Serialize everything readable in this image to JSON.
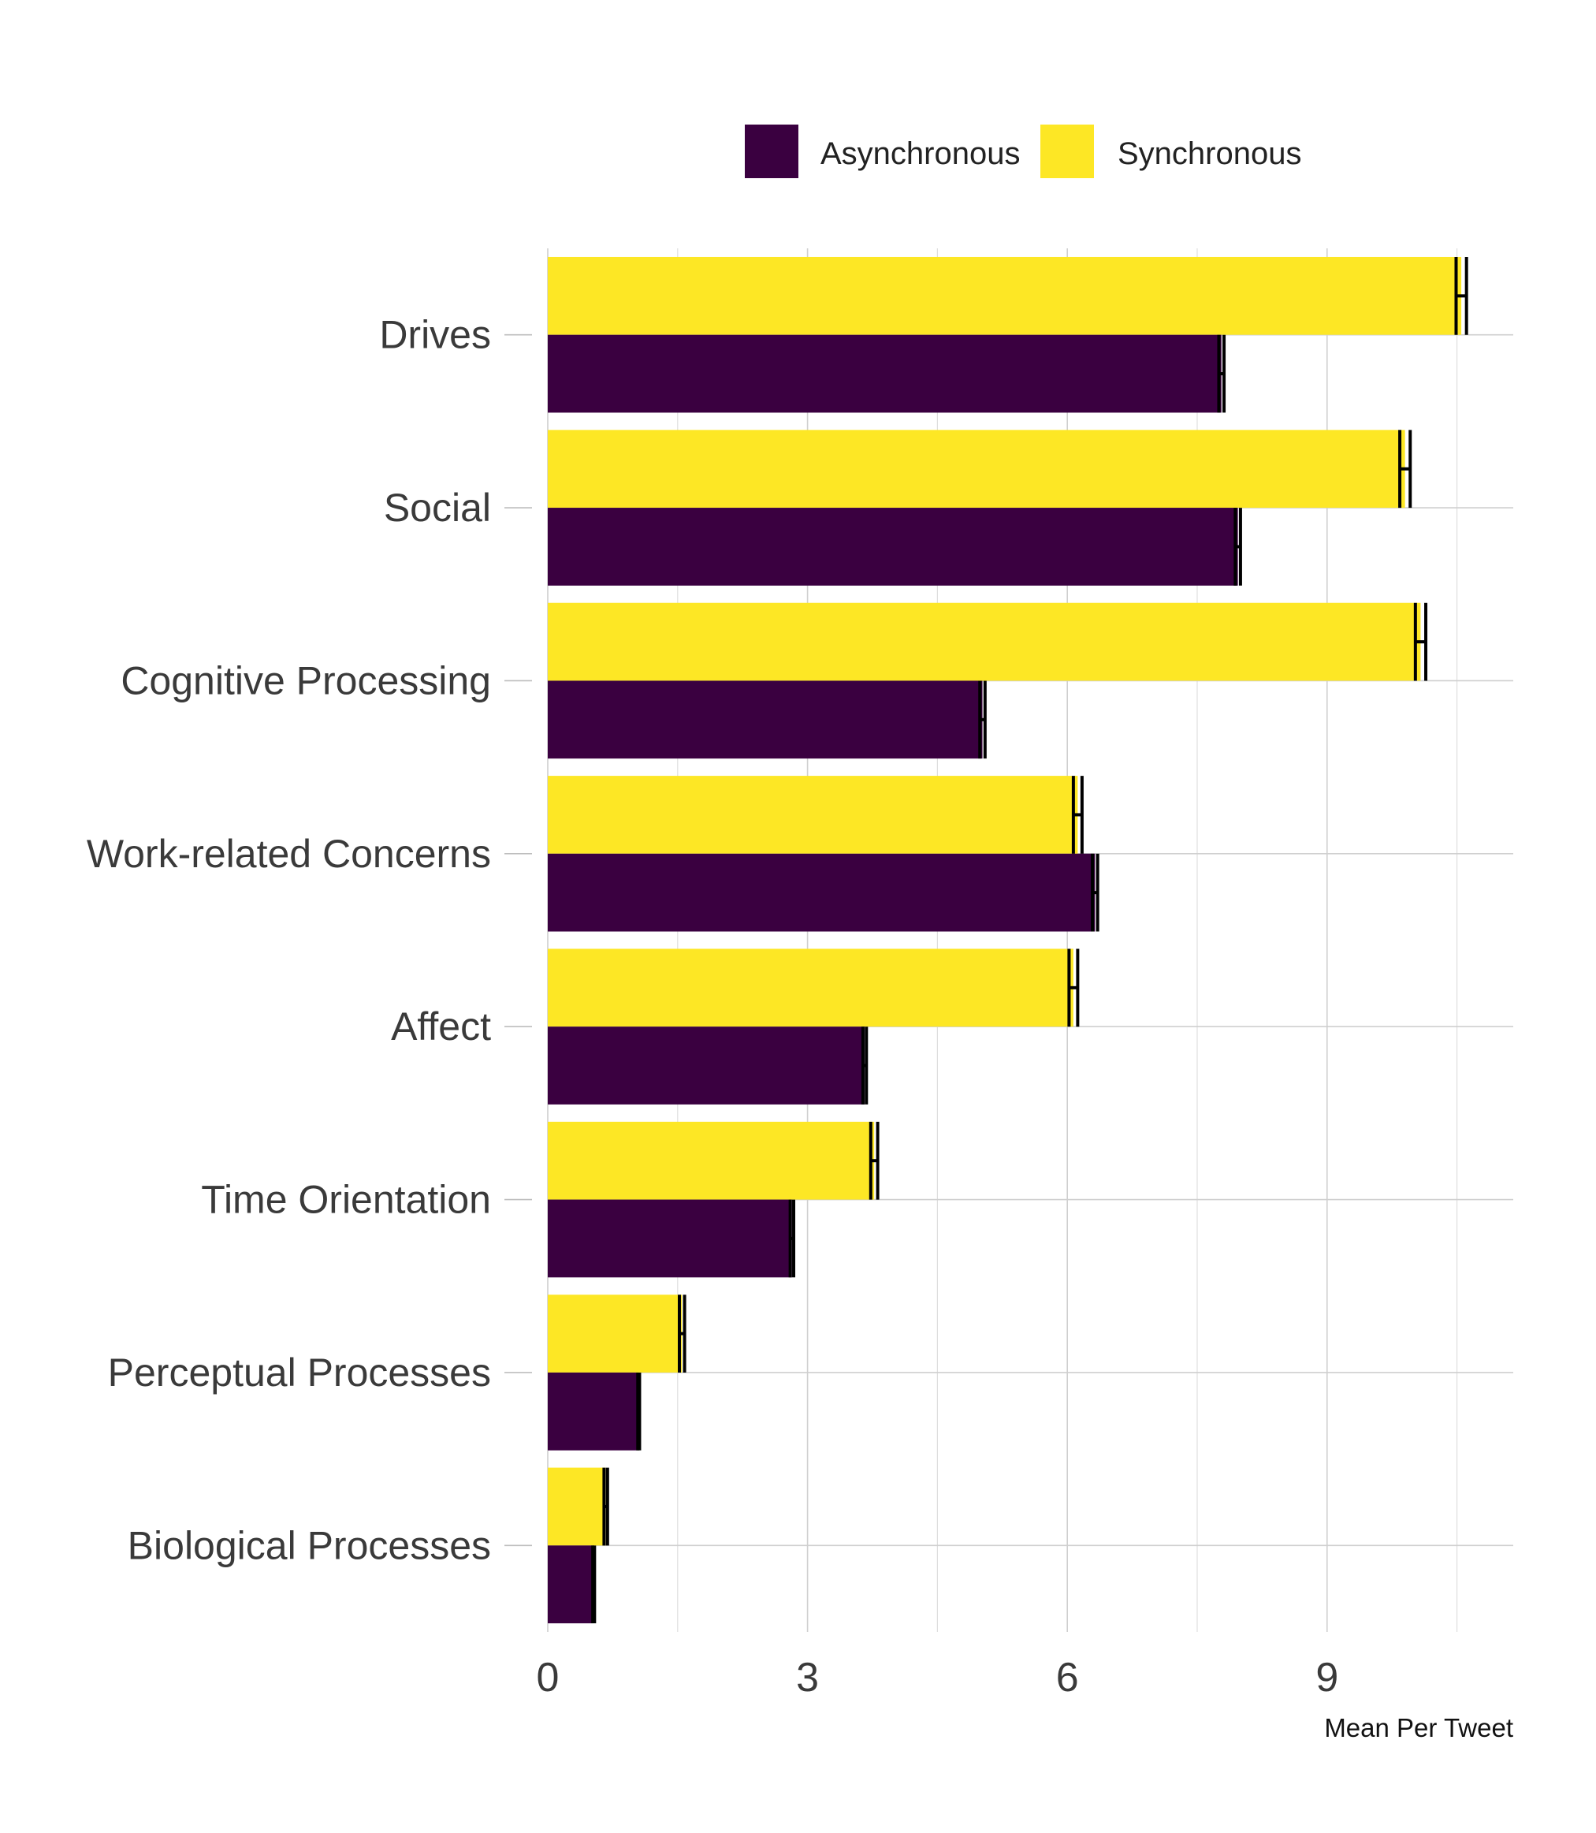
{
  "chart_data": {
    "type": "bar",
    "orientation": "horizontal",
    "categories": [
      "Drives",
      "Social",
      "Cognitive Processing",
      "Work-related Concerns",
      "Affect",
      "Time Orientation",
      "Perceptual Processes",
      "Biological Processes"
    ],
    "series": [
      {
        "name": "Synchronous",
        "color": "#FDE725",
        "values": [
          10.55,
          9.9,
          10.08,
          6.12,
          6.07,
          3.77,
          1.55,
          0.67
        ],
        "error": [
          0.06,
          0.06,
          0.06,
          0.05,
          0.05,
          0.04,
          0.03,
          0.02
        ]
      },
      {
        "name": "Asynchronous",
        "color": "#3A0040",
        "values": [
          7.78,
          7.97,
          5.02,
          6.32,
          3.66,
          2.82,
          1.05,
          0.53
        ],
        "error": [
          0.03,
          0.03,
          0.03,
          0.03,
          0.02,
          0.02,
          0.01,
          0.01
        ]
      }
    ],
    "xlabel": "Mean Per Tweet",
    "ylabel": "",
    "xlim": [
      0,
      11.15
    ],
    "xticks": [
      "0",
      "3",
      "6",
      "9"
    ],
    "grid": true,
    "legend_position": "top"
  }
}
